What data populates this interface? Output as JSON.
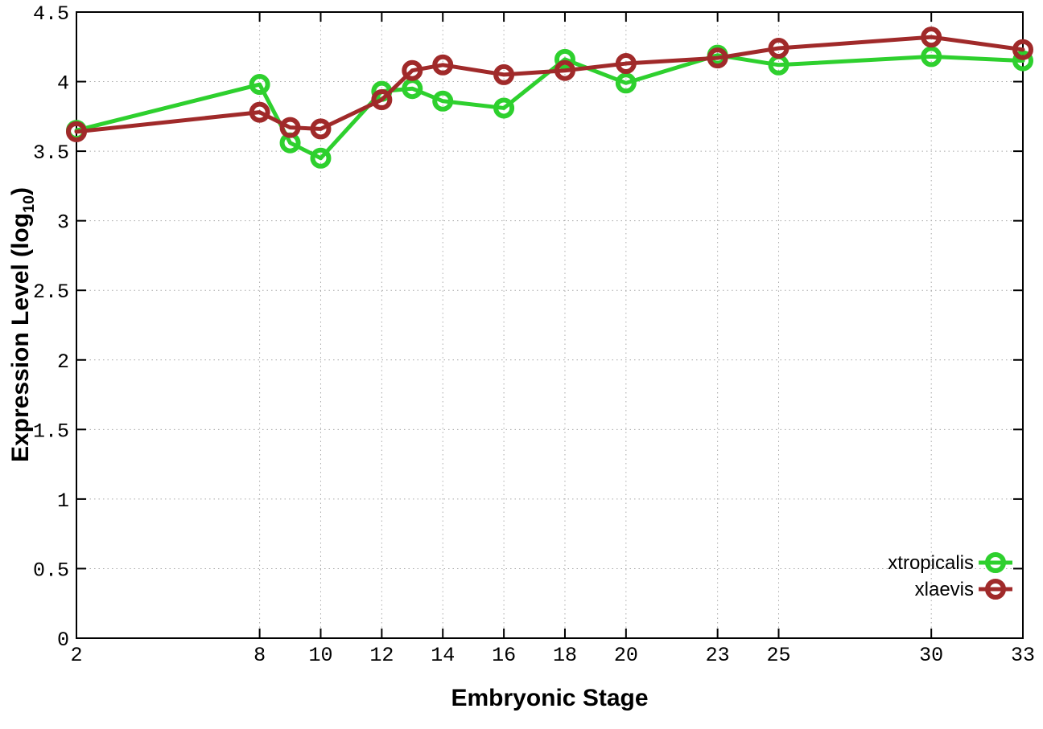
{
  "chart_data": {
    "type": "line",
    "title": "",
    "xlabel": "Embryonic Stage",
    "ylabel": "Expression Level (log10)",
    "ylabel_parts": {
      "prefix": "Expression Level (log",
      "sub": "10",
      "suffix": ")"
    },
    "xlim": [
      2,
      33
    ],
    "ylim": [
      0,
      4.5
    ],
    "grid": true,
    "legend_position": "bottom-right",
    "x_tick_values": [
      2,
      8,
      10,
      12,
      14,
      16,
      18,
      20,
      23,
      25,
      30,
      33
    ],
    "x_tick_labels": [
      "2",
      "8",
      "10",
      "12",
      "14",
      "16",
      "18",
      "20",
      "23",
      "25",
      "30",
      "33"
    ],
    "y_tick_values": [
      0,
      0.5,
      1,
      1.5,
      2,
      2.5,
      3,
      3.5,
      4,
      4.5
    ],
    "y_tick_labels": [
      "0",
      "0.5",
      "1",
      "1.5",
      "2",
      "2.5",
      "3",
      "3.5",
      "4",
      "4.5"
    ],
    "x": [
      2,
      8,
      9,
      10,
      12,
      13,
      14,
      16,
      18,
      20,
      23,
      25,
      30,
      33
    ],
    "series": [
      {
        "name": "xtropicalis",
        "color": "#2ed02e",
        "values": [
          3.65,
          3.98,
          3.56,
          3.45,
          3.93,
          3.95,
          3.86,
          3.81,
          4.16,
          3.99,
          4.19,
          4.12,
          4.18,
          4.15
        ]
      },
      {
        "name": "xlaevis",
        "color": "#a02a2a",
        "values": [
          3.64,
          3.78,
          3.67,
          3.66,
          3.87,
          4.08,
          4.12,
          4.05,
          4.08,
          4.13,
          4.17,
          4.24,
          4.32,
          4.23
        ]
      }
    ],
    "colors": {
      "grid": "#aaaaaa",
      "axis": "#000000",
      "text": "#000000",
      "background": "#ffffff"
    }
  }
}
